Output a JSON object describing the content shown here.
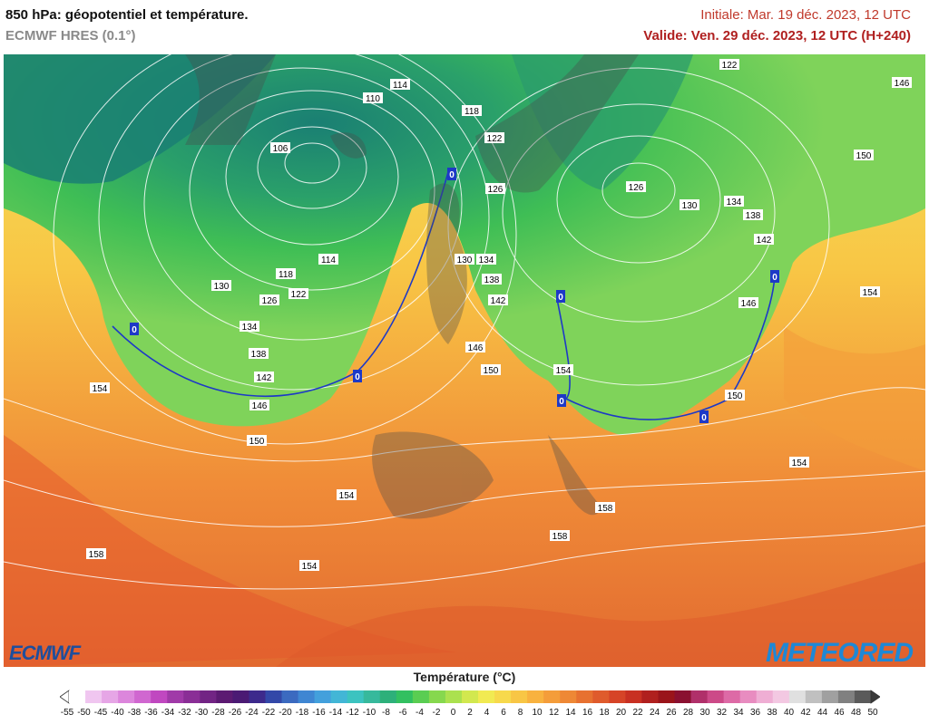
{
  "header": {
    "title": "850 hPa: géopotentiel et température.",
    "model": "ECMWF HRES (0.1°)",
    "init": "Initiale: Mar. 19 déc. 2023, 12 UTC",
    "valid": "Valide: Ven. 29 déc. 2023, 12 UTC (H+240)"
  },
  "map": {
    "contour_labels": [
      "106",
      "110",
      "114",
      "118",
      "122",
      "126",
      "130",
      "134",
      "138",
      "142",
      "146",
      "150",
      "154",
      "158",
      "114",
      "118",
      "122",
      "126",
      "130",
      "134",
      "138",
      "142",
      "146",
      "150",
      "154",
      "154",
      "158",
      "122",
      "126",
      "130",
      "134",
      "138",
      "142",
      "146",
      "150",
      "154",
      "146",
      "150",
      "154",
      "154",
      "158",
      "150",
      "154",
      "126",
      "130"
    ],
    "zero_isotherm_labels": [
      "0",
      "0",
      "0",
      "0",
      "0",
      "0",
      "0"
    ],
    "colors": {
      "cold": "#1a7f73",
      "cool": "#35b04c",
      "mild": "#7fd35a",
      "warm": "#f3e35b",
      "hot": "#f5a23a",
      "hottest": "#e4552c",
      "contour": "#ffffff",
      "zero": "#1d39c7"
    }
  },
  "brands": {
    "left": "ECMWF",
    "right": "METEORED"
  },
  "legend": {
    "title": "Température (°C)",
    "ticks": [
      "-55",
      "-50",
      "-45",
      "-40",
      "-38",
      "-36",
      "-34",
      "-32",
      "-30",
      "-28",
      "-26",
      "-24",
      "-22",
      "-20",
      "-18",
      "-16",
      "-14",
      "-12",
      "-10",
      "-8",
      "-6",
      "-4",
      "-2",
      "0",
      "2",
      "4",
      "6",
      "8",
      "10",
      "12",
      "14",
      "16",
      "18",
      "20",
      "22",
      "24",
      "26",
      "28",
      "30",
      "32",
      "34",
      "36",
      "38",
      "40",
      "42",
      "44",
      "46",
      "48",
      "50"
    ],
    "colors": [
      "#ffffff",
      "#f0c6f0",
      "#e6a6e6",
      "#dc86dc",
      "#d067d0",
      "#c048c0",
      "#a03aa8",
      "#8a2e96",
      "#722484",
      "#5c1a72",
      "#4b1a74",
      "#3d2a8c",
      "#3348a8",
      "#3b6ac0",
      "#3f86d2",
      "#43a0dc",
      "#42b6d6",
      "#3cc3c0",
      "#37b99c",
      "#2db07a",
      "#32c060",
      "#5acd52",
      "#86d84e",
      "#abe14f",
      "#d2e84f",
      "#f1ea52",
      "#f7d94c",
      "#f8c645",
      "#f8b23f",
      "#f49d3a",
      "#ee8835",
      "#e77130",
      "#df5b2c",
      "#d64427",
      "#c83022",
      "#b0201e",
      "#9a141a",
      "#8a1030",
      "#b0306a",
      "#cc4a88",
      "#dd6aa6",
      "#e88cc0",
      "#efaed4",
      "#f3c8e2",
      "#e0e0e0",
      "#c0c0c0",
      "#a0a0a0",
      "#808080",
      "#5a5a5a"
    ]
  }
}
